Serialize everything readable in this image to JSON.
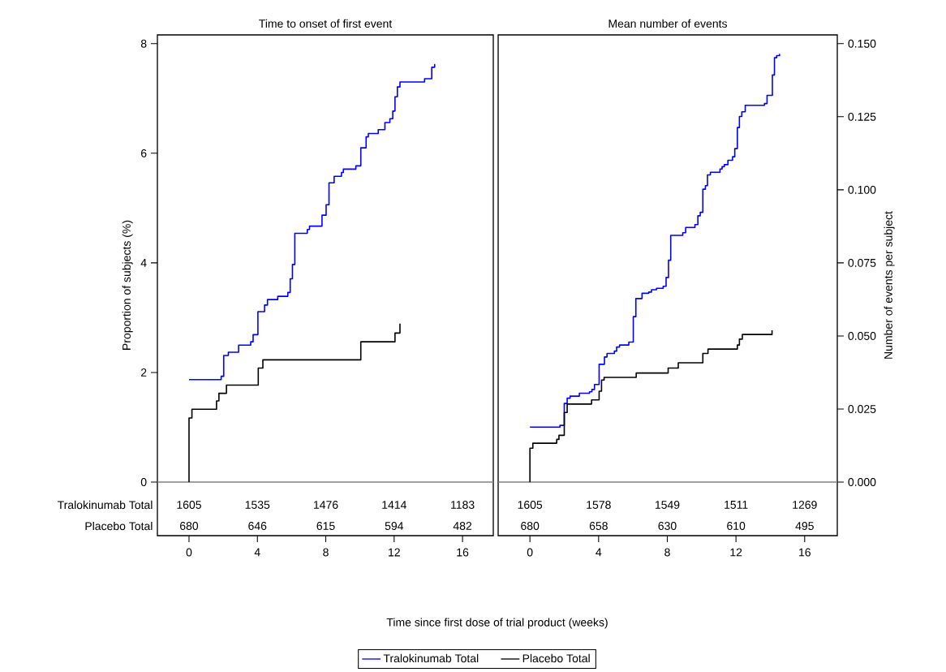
{
  "chart_data": [
    {
      "type": "step",
      "title": "Time to onset of first event",
      "ylabel": "Proportion of subjects (%)",
      "xlabel": "Time since first dose of trial product (weeks)",
      "xlim": [
        -1.85,
        17.8
      ],
      "xticks": [
        0,
        4,
        8,
        12,
        16
      ],
      "ylim": [
        0,
        8.16
      ],
      "yticks": [
        0,
        2,
        4,
        6,
        8
      ],
      "legend": "bottom",
      "ref_lines": [
        {
          "axis": "y",
          "value": 0,
          "color": "#808080"
        }
      ],
      "annotations": [
        "Tralokinumab Total",
        "1605",
        "1535",
        "1476",
        "1414",
        "1183",
        "Placebo Total",
        "680",
        "646",
        "615",
        "594",
        "482"
      ],
      "series": [
        {
          "name": "Tralokinumab Total",
          "color": "#0000ff",
          "x": [
            0,
            1.88,
            2.03,
            2.3,
            2.9,
            3.61,
            3.75,
            4.03,
            4.42,
            4.59,
            5.19,
            5.78,
            5.92,
            6.05,
            6.19,
            6.92,
            7.05,
            7.78,
            8.02,
            8.19,
            8.49,
            8.92,
            9.03,
            9.76,
            10.05,
            10.36,
            10.49,
            11.07,
            11.46,
            11.75,
            11.92,
            12.05,
            12.19,
            12.34,
            13.78,
            14.2,
            14.37,
            14.4
          ],
          "values": [
            1.87,
            1.93,
            2.31,
            2.37,
            2.5,
            2.56,
            2.69,
            3.11,
            3.23,
            3.33,
            3.39,
            3.46,
            3.71,
            3.97,
            4.54,
            4.61,
            4.67,
            4.87,
            5.06,
            5.46,
            5.58,
            5.65,
            5.71,
            5.77,
            6.1,
            6.3,
            6.36,
            6.43,
            6.56,
            6.63,
            6.77,
            7.03,
            7.21,
            7.3,
            7.36,
            7.57,
            7.62,
            7.62
          ]
        },
        {
          "name": "Placebo Total",
          "color": "#000000",
          "x": [
            0,
            0,
            0.17,
            1.61,
            1.75,
            2.19,
            4.05,
            4.32,
            10.05,
            12.05,
            12.34,
            12.34
          ],
          "values": [
            0,
            1.17,
            1.33,
            1.48,
            1.62,
            1.77,
            2.08,
            2.23,
            2.56,
            2.72,
            2.89,
            2.89
          ]
        }
      ]
    },
    {
      "type": "step",
      "title": "Mean number of events",
      "ylabel": "Number of events per subject",
      "xlim": [
        -1.85,
        17.9
      ],
      "xticks": [
        0,
        4,
        8,
        12,
        16
      ],
      "ylim": [
        0,
        0.153
      ],
      "yticks": [
        {
          "value": 0,
          "label": "0.000"
        },
        0.025,
        {
          "value": 0.05,
          "label": "0.050"
        },
        0.075,
        {
          "value": 0.1,
          "label": "0.100"
        },
        0.125,
        {
          "value": 0.15,
          "label": "0.150"
        }
      ],
      "ref_lines": [
        {
          "axis": "y",
          "value": 0,
          "color": "#808080"
        }
      ],
      "annotations": [
        "1605",
        "1578",
        "1549",
        "1511",
        "1269",
        "680",
        "658",
        "630",
        "610",
        "495"
      ],
      "series": [
        {
          "color": "#0000ff",
          "x": [
            0,
            1.75,
            2.0,
            2.17,
            2.34,
            2.88,
            3.47,
            3.61,
            3.76,
            4.03,
            4.34,
            4.49,
            4.92,
            5.05,
            5.22,
            5.76,
            6.02,
            6.17,
            6.53,
            6.92,
            7.08,
            7.37,
            7.76,
            7.93,
            8.07,
            8.2,
            8.9,
            9.07,
            9.61,
            9.78,
            9.92,
            10.07,
            10.22,
            10.34,
            10.51,
            11.07,
            11.19,
            11.32,
            11.53,
            11.8,
            11.93,
            12.08,
            12.2,
            12.34,
            12.54,
            13.66,
            13.81,
            14.12,
            14.24,
            14.37,
            14.54,
            14.55
          ],
          "values": [
            0.0188,
            0.0194,
            0.0269,
            0.0287,
            0.0294,
            0.0304,
            0.0309,
            0.0317,
            0.0334,
            0.0403,
            0.0428,
            0.044,
            0.0448,
            0.0462,
            0.0469,
            0.0479,
            0.0566,
            0.0628,
            0.0646,
            0.065,
            0.0658,
            0.0663,
            0.067,
            0.07,
            0.0759,
            0.0844,
            0.0853,
            0.0871,
            0.0881,
            0.0911,
            0.0923,
            0.1002,
            0.1014,
            0.1051,
            0.106,
            0.1071,
            0.1079,
            0.1086,
            0.1101,
            0.1113,
            0.1141,
            0.1213,
            0.1251,
            0.1267,
            0.1289,
            0.1295,
            0.1323,
            0.1393,
            0.1452,
            0.1459,
            0.1464,
            0.1464
          ]
        },
        {
          "color": "#000000",
          "x": [
            0,
            0,
            0.17,
            1.56,
            1.69,
            2.0,
            2.17,
            3.59,
            4.03,
            4.17,
            4.32,
            6.19,
            8.05,
            8.64,
            10.07,
            10.37,
            12.08,
            12.2,
            12.37,
            14.1,
            14.1
          ],
          "values": [
            0,
            0.0116,
            0.0133,
            0.0146,
            0.016,
            0.0238,
            0.0267,
            0.0281,
            0.0311,
            0.0349,
            0.0358,
            0.0373,
            0.039,
            0.0408,
            0.044,
            0.0455,
            0.0469,
            0.0489,
            0.0505,
            0.0519,
            0.0519
          ]
        }
      ]
    }
  ]
}
